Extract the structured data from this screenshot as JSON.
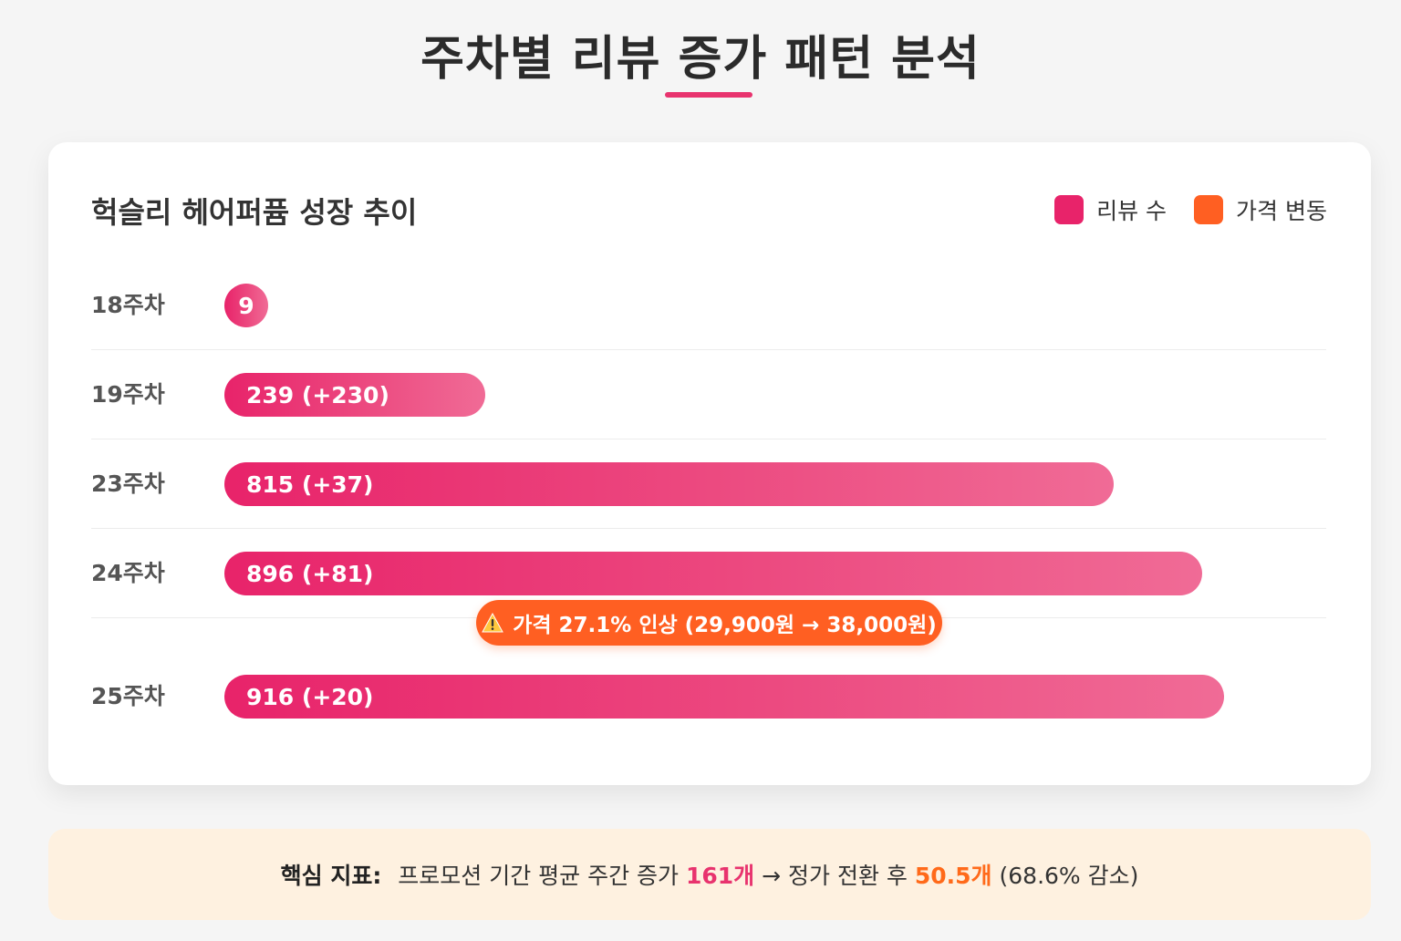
{
  "page_title": "주차별 리뷰 증가 패턴 분석",
  "chart_data": {
    "type": "bar",
    "orientation": "horizontal",
    "title": "헉슬리 헤어퍼퓸 성장 추이",
    "categories": [
      "18주차",
      "19주차",
      "23주차",
      "24주차",
      "25주차"
    ],
    "series": [
      {
        "name": "리뷰 수",
        "values": [
          9,
          239,
          815,
          896,
          916
        ],
        "labels": [
          "9",
          "239 (+230)",
          "815 (+37)",
          "896 (+81)",
          "916 (+20)"
        ]
      }
    ],
    "xlim": [
      0,
      1010
    ],
    "legend": [
      {
        "label": "리뷰 수",
        "color": "#e8236a"
      },
      {
        "label": "가격 변동",
        "color": "#ff5f22"
      }
    ],
    "legend_position": "top-right",
    "annotation": {
      "after_category": "24주차",
      "icon": "warning-icon",
      "text": "가격 27.1% 인상 (29,900원 → 38,000원)"
    }
  },
  "metric": {
    "label": "핵심 지표:",
    "part1": " 프로모션 기간 평균 주간 증가 ",
    "value1": "161개",
    "part2": " → 정가 전환 후 ",
    "value2": "50.5개",
    "part3": " (68.6% 감소)"
  },
  "colors": {
    "accent": "#e8336e",
    "bar_start": "#e8236a",
    "bar_end": "#f06b96",
    "price_change": "#ff5f22",
    "metric_bg": "#fef1e0"
  }
}
